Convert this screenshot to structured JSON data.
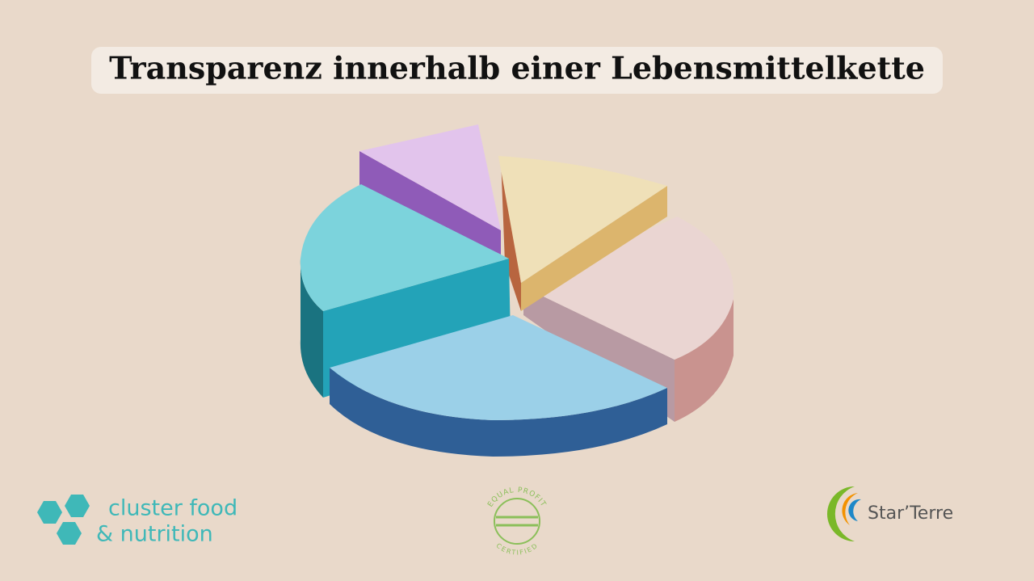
{
  "header": {
    "title": "Transparenz innerhalb einer Lebensmittelkette"
  },
  "logos": {
    "cluster": {
      "line1": "cluster food",
      "line2": "& nutrition"
    },
    "equal_profit": {
      "top": "EQUAL PROFIT",
      "bottom": "CERTIFIED"
    },
    "starterre": {
      "name": "Star’Terre"
    }
  }
}
